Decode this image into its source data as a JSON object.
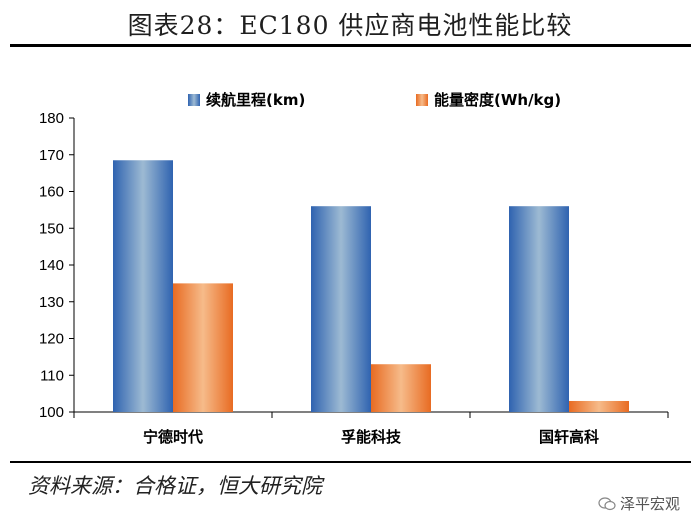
{
  "header": {
    "title": "图表28：EC180 供应商电池性能比较"
  },
  "footer": {
    "source": "资料来源：合格证，恒大研究院",
    "watermark": "泽平宏观"
  },
  "colors": {
    "series1": "#4a7fc1",
    "series2": "#ee8a3c"
  },
  "chart_data": {
    "type": "bar",
    "categories": [
      "宁德时代",
      "孚能科技",
      "国轩高科"
    ],
    "series": [
      {
        "name": "续航里程(km)",
        "values": [
          168.5,
          156,
          156
        ]
      },
      {
        "name": "能量密度(Wh/kg)",
        "values": [
          135,
          113,
          103
        ]
      }
    ],
    "ylim": [
      100,
      180
    ],
    "yticks": [
      "100",
      "110",
      "120",
      "130",
      "140",
      "150",
      "160",
      "170",
      "180"
    ],
    "legend_position": "top",
    "grid": false
  }
}
